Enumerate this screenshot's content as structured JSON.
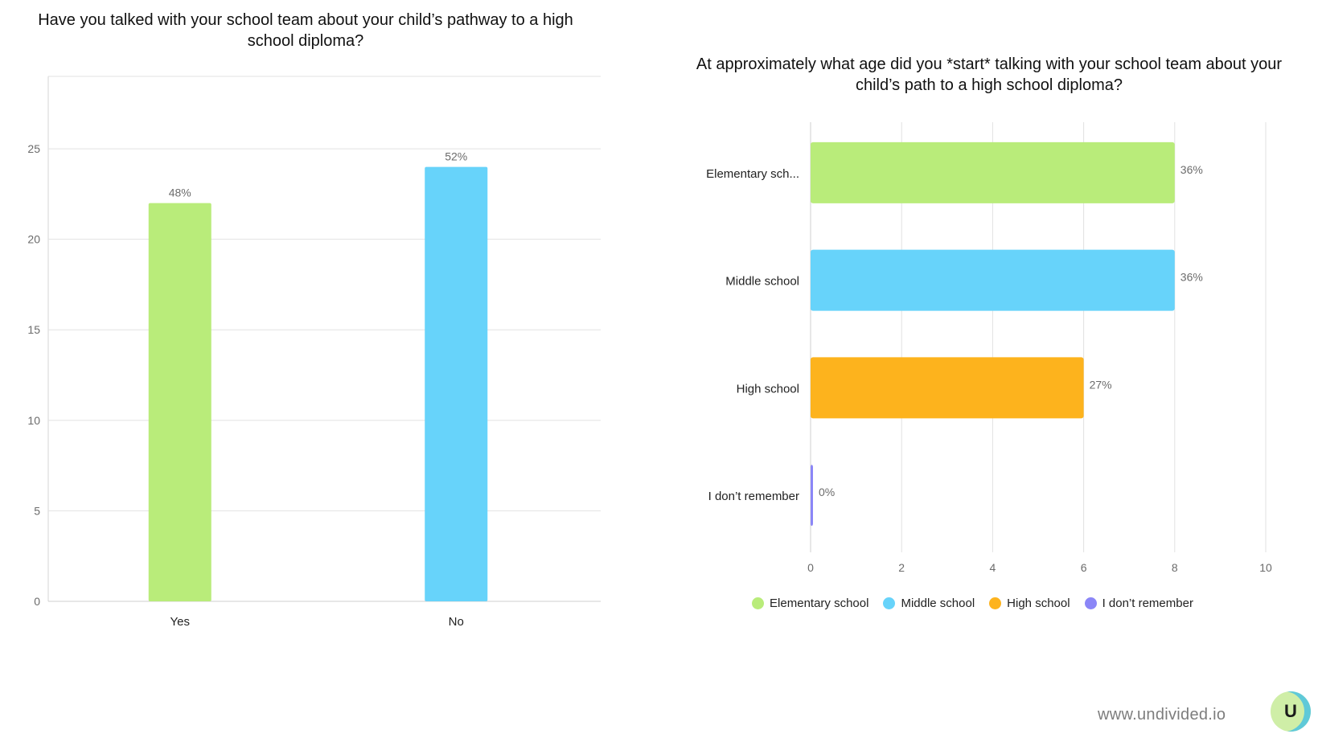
{
  "footer": {
    "url": "www.undivided.io",
    "logo_letter": "U"
  },
  "chart_data": [
    {
      "type": "bar",
      "title": "Have you talked with your school team about your child’s pathway to a high school diploma?",
      "categories": [
        "Yes",
        "No"
      ],
      "values": [
        22,
        24
      ],
      "data_labels": [
        "48%",
        "52%"
      ],
      "colors": [
        "#b9ec7a",
        "#67d3fa"
      ],
      "ylim": [
        0,
        29
      ],
      "yticks": [
        0,
        5,
        10,
        15,
        20,
        25
      ],
      "xlabel": "",
      "ylabel": "",
      "grid": true
    },
    {
      "type": "bar",
      "orientation": "horizontal",
      "title": "At approximately what age did you *start* talking with your school team about your child’s path to a high school diploma?",
      "categories": [
        "Elementary sch...",
        "Middle school",
        "High school",
        "I don’t remember"
      ],
      "values": [
        8,
        8,
        6,
        0
      ],
      "data_labels": [
        "36%",
        "36%",
        "27%",
        "0%"
      ],
      "colors": [
        "#b9ec7a",
        "#67d3fa",
        "#fdb31d",
        "#8b86f7"
      ],
      "xlim": [
        0,
        10
      ],
      "xticks": [
        0,
        2,
        4,
        6,
        8,
        10
      ],
      "legend": [
        "Elementary school",
        "Middle school",
        "High school",
        "I don’t remember"
      ],
      "legend_position": "bottom",
      "grid": true
    }
  ]
}
